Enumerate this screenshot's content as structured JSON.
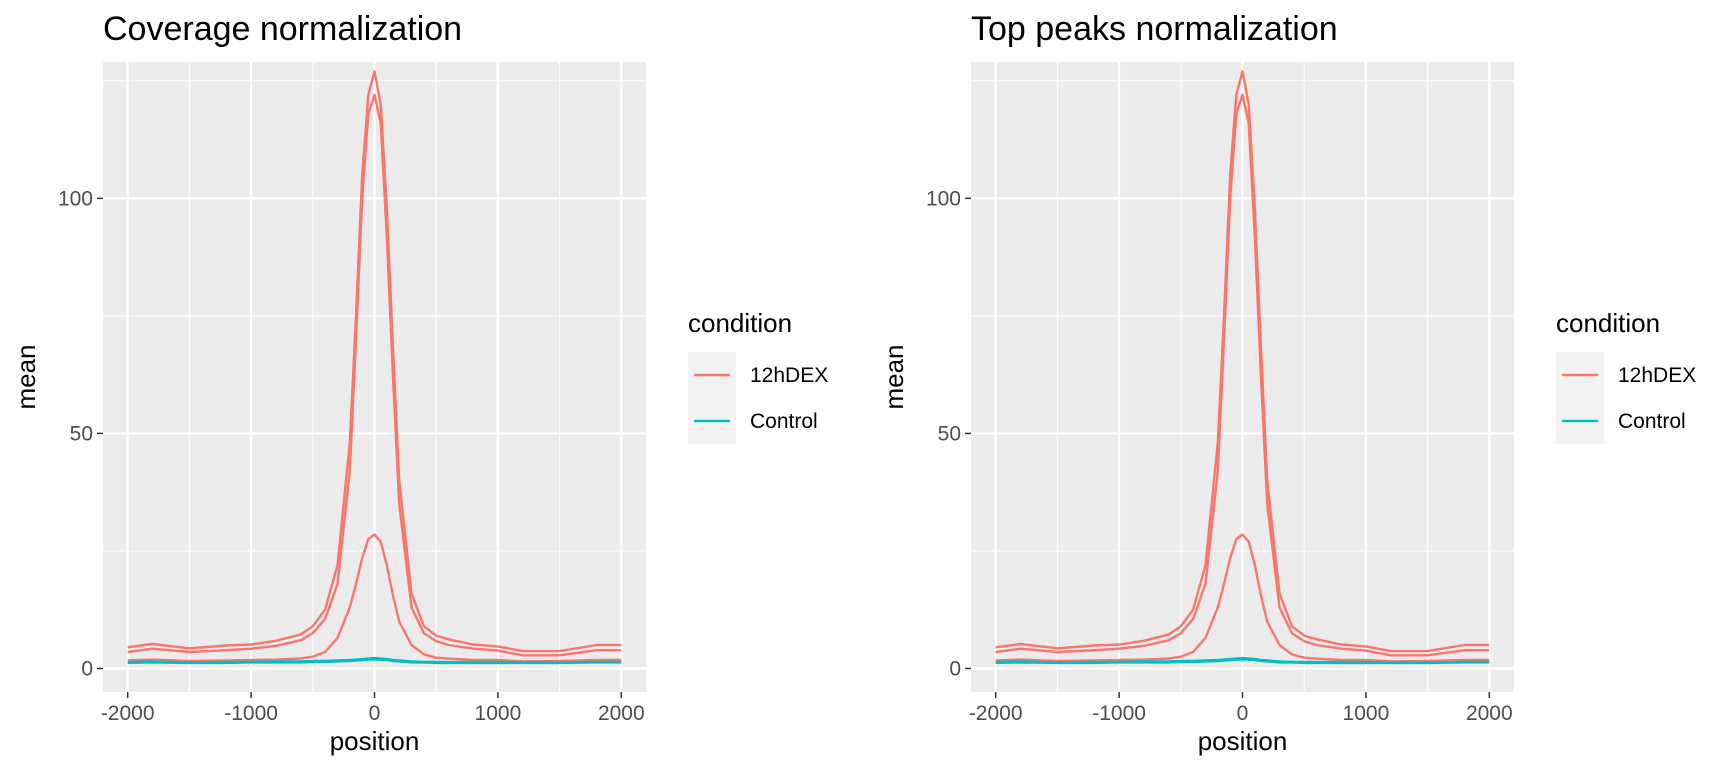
{
  "chart_data": [
    {
      "type": "line",
      "title": "Coverage normalization",
      "xlabel": "position",
      "ylabel": "mean",
      "xlim": [
        -2200,
        2200
      ],
      "ylim": [
        -5,
        129
      ],
      "xticks": [
        -2000,
        -1000,
        0,
        1000,
        2000
      ],
      "xtick_labels": [
        "-2000",
        "-1000",
        "0",
        "1000",
        "2000"
      ],
      "yticks": [
        0,
        50,
        100
      ],
      "ytick_labels": [
        "0",
        "50",
        "100"
      ],
      "grid": true,
      "legend": {
        "title": "condition",
        "position": "right",
        "entries": [
          {
            "label": "12hDEX",
            "color": "#F8766D"
          },
          {
            "label": "Control",
            "color": "#00BFC4"
          }
        ]
      },
      "x": [
        -2000,
        -1800,
        -1500,
        -1200,
        -1000,
        -800,
        -600,
        -500,
        -400,
        -300,
        -200,
        -150,
        -100,
        -50,
        0,
        50,
        100,
        150,
        200,
        300,
        400,
        500,
        600,
        800,
        1000,
        1200,
        1500,
        1800,
        2000
      ],
      "series": [
        {
          "condition": "12hDEX",
          "color": "#F8766D",
          "values": [
            4.5,
            5.2,
            4.3,
            4.9,
            5.1,
            5.9,
            7.2,
            9,
            12.5,
            22,
            48,
            75,
            105,
            122,
            127,
            120,
            98,
            68,
            40,
            16,
            9,
            7,
            6.2,
            5.1,
            4.7,
            3.7,
            3.7,
            5,
            5
          ]
        },
        {
          "condition": "12hDEX",
          "color": "#F8766D",
          "values": [
            3.5,
            4.2,
            3.5,
            3.9,
            4.2,
            4.8,
            6,
            7.5,
            10.5,
            18,
            42,
            70,
            100,
            118,
            122,
            116,
            92,
            62,
            35,
            13,
            7.5,
            5.8,
            5,
            4.2,
            3.8,
            2.8,
            2.8,
            3.9,
            3.9
          ]
        },
        {
          "condition": "12hDEX",
          "color": "#F8766D",
          "values": [
            1.7,
            1.9,
            1.6,
            1.7,
            1.8,
            1.9,
            2.1,
            2.5,
            3.5,
            6.5,
            13,
            18,
            23.5,
            27.5,
            28.5,
            27,
            22,
            15.5,
            10,
            5,
            3,
            2.3,
            2.1,
            1.8,
            1.8,
            1.5,
            1.6,
            1.8,
            1.8
          ]
        },
        {
          "condition": "Control",
          "color": "#00BFC4",
          "values": [
            1.4,
            1.5,
            1.3,
            1.4,
            1.4,
            1.5,
            1.5,
            1.6,
            1.6,
            1.7,
            1.8,
            1.9,
            2.0,
            2.1,
            2.2,
            2.1,
            2.0,
            1.8,
            1.7,
            1.5,
            1.4,
            1.4,
            1.4,
            1.4,
            1.4,
            1.3,
            1.3,
            1.4,
            1.4
          ]
        },
        {
          "condition": "Control",
          "color": "#00BFC4",
          "values": [
            1.2,
            1.3,
            1.2,
            1.2,
            1.3,
            1.3,
            1.3,
            1.4,
            1.4,
            1.5,
            1.6,
            1.7,
            1.8,
            1.9,
            1.9,
            1.9,
            1.8,
            1.6,
            1.5,
            1.3,
            1.3,
            1.2,
            1.2,
            1.2,
            1.2,
            1.2,
            1.2,
            1.3,
            1.3
          ]
        }
      ]
    },
    {
      "type": "line",
      "title": "Top peaks normalization",
      "xlabel": "position",
      "ylabel": "mean",
      "xlim": [
        -2200,
        2200
      ],
      "ylim": [
        -5,
        129
      ],
      "xticks": [
        -2000,
        -1000,
        0,
        1000,
        2000
      ],
      "xtick_labels": [
        "-2000",
        "-1000",
        "0",
        "1000",
        "2000"
      ],
      "yticks": [
        0,
        50,
        100
      ],
      "ytick_labels": [
        "0",
        "50",
        "100"
      ],
      "grid": true,
      "legend": {
        "title": "condition",
        "position": "right",
        "entries": [
          {
            "label": "12hDEX",
            "color": "#F8766D"
          },
          {
            "label": "Control",
            "color": "#00BFC4"
          }
        ]
      },
      "x": [
        -2000,
        -1800,
        -1500,
        -1200,
        -1000,
        -800,
        -600,
        -500,
        -400,
        -300,
        -200,
        -150,
        -100,
        -50,
        0,
        50,
        100,
        150,
        200,
        300,
        400,
        500,
        600,
        800,
        1000,
        1200,
        1500,
        1800,
        2000
      ],
      "series": [
        {
          "condition": "12hDEX",
          "color": "#F8766D",
          "values": [
            4.5,
            5.2,
            4.3,
            4.9,
            5.1,
            5.9,
            7.2,
            9,
            12.5,
            22,
            48,
            75,
            105,
            122,
            127,
            120,
            98,
            68,
            40,
            16,
            9,
            7,
            6.2,
            5.1,
            4.7,
            3.7,
            3.7,
            5,
            5
          ]
        },
        {
          "condition": "12hDEX",
          "color": "#F8766D",
          "values": [
            3.5,
            4.2,
            3.5,
            3.9,
            4.2,
            4.8,
            6,
            7.5,
            10.5,
            18,
            42,
            70,
            100,
            118,
            122,
            116,
            92,
            62,
            35,
            13,
            7.5,
            5.8,
            5,
            4.2,
            3.8,
            2.8,
            2.8,
            3.9,
            3.9
          ]
        },
        {
          "condition": "12hDEX",
          "color": "#F8766D",
          "values": [
            1.7,
            1.9,
            1.6,
            1.7,
            1.8,
            1.9,
            2.1,
            2.5,
            3.5,
            6.5,
            13,
            18,
            23.5,
            27.5,
            28.5,
            27,
            22,
            15.5,
            10,
            5,
            3,
            2.3,
            2.1,
            1.8,
            1.8,
            1.5,
            1.6,
            1.8,
            1.8
          ]
        },
        {
          "condition": "Control",
          "color": "#00BFC4",
          "values": [
            1.4,
            1.5,
            1.3,
            1.4,
            1.4,
            1.5,
            1.5,
            1.6,
            1.6,
            1.7,
            1.8,
            1.9,
            2.0,
            2.1,
            2.2,
            2.1,
            2.0,
            1.8,
            1.7,
            1.5,
            1.4,
            1.4,
            1.4,
            1.4,
            1.4,
            1.3,
            1.3,
            1.4,
            1.4
          ]
        },
        {
          "condition": "Control",
          "color": "#00BFC4",
          "values": [
            1.2,
            1.3,
            1.2,
            1.2,
            1.3,
            1.3,
            1.3,
            1.4,
            1.4,
            1.5,
            1.6,
            1.7,
            1.8,
            1.9,
            1.9,
            1.9,
            1.8,
            1.6,
            1.5,
            1.3,
            1.3,
            1.2,
            1.2,
            1.2,
            1.2,
            1.2,
            1.2,
            1.3,
            1.3
          ]
        }
      ]
    }
  ]
}
